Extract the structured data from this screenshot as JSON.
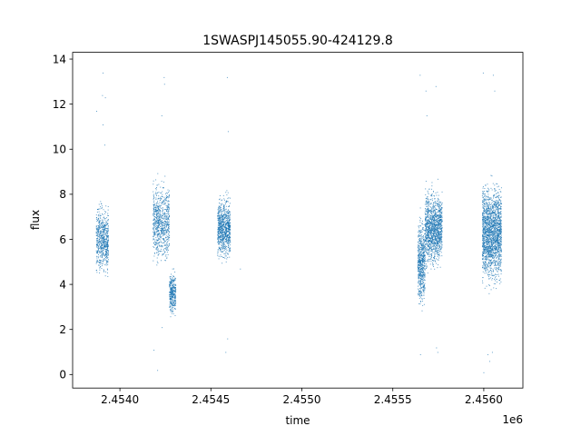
{
  "chart_data": {
    "type": "scatter",
    "title": "1SWASPJ145055.90-424129.8",
    "xlabel": "time",
    "ylabel": "flux",
    "x_offset_label": "1e6",
    "xlim": [
      2453740,
      2456215
    ],
    "ylim": [
      -0.6,
      14.3
    ],
    "x_ticks": [
      2.454,
      2.4545,
      2.455,
      2.4555,
      2.456
    ],
    "x_tick_labels": [
      "2.4540",
      "2.4545",
      "2.4550",
      "2.4555",
      "2.4560"
    ],
    "y_ticks": [
      0,
      2,
      4,
      6,
      8,
      10,
      12,
      14
    ],
    "y_tick_labels": [
      "0",
      "2",
      "4",
      "6",
      "8",
      "10",
      "12",
      "14"
    ],
    "grid": false,
    "legend": "none",
    "marker_color": "#1f77b4",
    "series": [
      {
        "clusters": [
          {
            "x_start": 2453868,
            "x_end": 2453935,
            "y_low": 3.3,
            "y_high": 8.2,
            "y_center": 6.0,
            "count": 650
          },
          {
            "x_start": 2454180,
            "x_end": 2454270,
            "y_low": 3.4,
            "y_high": 9.0,
            "y_center": 6.8,
            "count": 750
          },
          {
            "x_start": 2454270,
            "x_end": 2454305,
            "y_low": 2.3,
            "y_high": 5.3,
            "y_center": 3.6,
            "count": 350
          },
          {
            "x_start": 2454535,
            "x_end": 2454605,
            "y_low": 4.5,
            "y_high": 9.0,
            "y_center": 6.5,
            "count": 850
          },
          {
            "x_start": 2455635,
            "x_end": 2455675,
            "y_low": 2.8,
            "y_high": 9.0,
            "y_center": 5.0,
            "count": 600
          },
          {
            "x_start": 2455675,
            "x_end": 2455770,
            "y_low": 4.0,
            "y_high": 9.5,
            "y_center": 6.5,
            "count": 1300
          },
          {
            "x_start": 2455990,
            "x_end": 2456095,
            "y_low": 3.3,
            "y_high": 10.5,
            "y_center": 6.3,
            "count": 1900
          }
        ],
        "outliers": [
          [
            2453905,
            13.4
          ],
          [
            2453902,
            12.4
          ],
          [
            2453918,
            12.3
          ],
          [
            2453870,
            11.7
          ],
          [
            2453905,
            11.1
          ],
          [
            2453915,
            10.2
          ],
          [
            2454241,
            13.2
          ],
          [
            2454243,
            12.9
          ],
          [
            2454228,
            11.5
          ],
          [
            2454185,
            1.1
          ],
          [
            2454205,
            0.2
          ],
          [
            2454230,
            2.1
          ],
          [
            2454588,
            13.2
          ],
          [
            2454593,
            10.8
          ],
          [
            2454580,
            1.0
          ],
          [
            2454590,
            1.6
          ],
          [
            2454660,
            4.7
          ],
          [
            2455648,
            13.3
          ],
          [
            2455650,
            0.9
          ],
          [
            2455680,
            12.6
          ],
          [
            2455685,
            11.5
          ],
          [
            2455735,
            12.8
          ],
          [
            2455745,
            1.0
          ],
          [
            2455738,
            1.2
          ],
          [
            2455995,
            13.4
          ],
          [
            2456050,
            13.3
          ],
          [
            2456058,
            12.6
          ],
          [
            2456030,
            0.6
          ],
          [
            2455998,
            0.1
          ],
          [
            2456045,
            1.0
          ],
          [
            2456020,
            0.9
          ]
        ]
      }
    ]
  }
}
